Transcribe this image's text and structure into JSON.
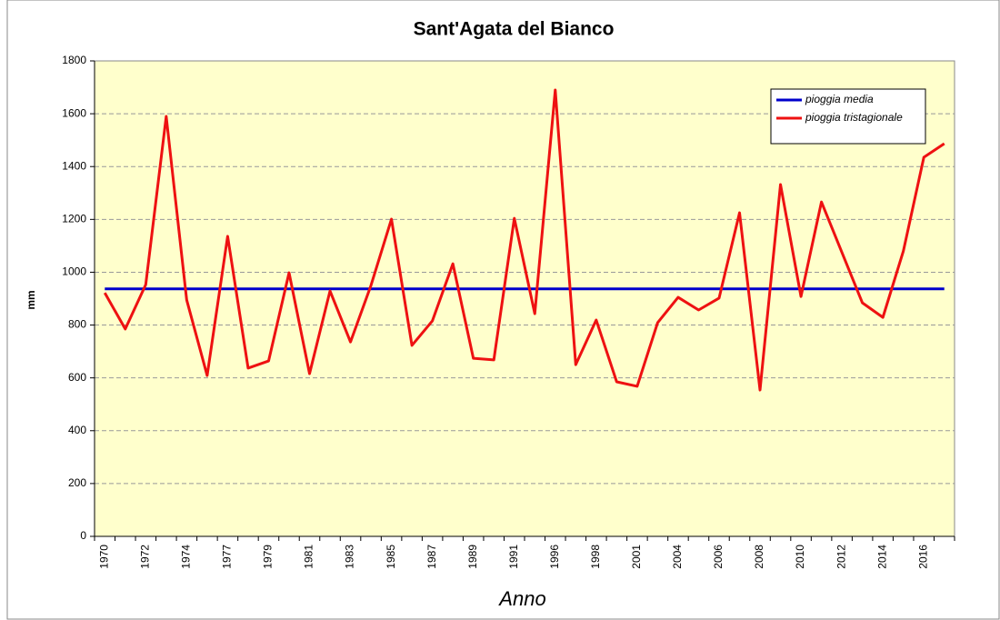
{
  "chart_data": {
    "type": "line",
    "title": "Sant'Agata del Bianco",
    "x_label": "Anno",
    "y_label": "mm",
    "categories": [
      "1970",
      null,
      "1972",
      null,
      "1974",
      null,
      "1977",
      null,
      "1979",
      null,
      "1981",
      null,
      "1983",
      null,
      "1985",
      null,
      "1987",
      null,
      "1989",
      null,
      "1991",
      null,
      "1996",
      null,
      "1998",
      null,
      "2001",
      null,
      "2004",
      null,
      "2006",
      null,
      "2008",
      null,
      "2010",
      null,
      "2012",
      null,
      "2014",
      null,
      "2016",
      null
    ],
    "series": [
      {
        "name": "pioggia media",
        "color": "#0000cc",
        "values": [
          937,
          937,
          937,
          937,
          937,
          937,
          937,
          937,
          937,
          937,
          937,
          937,
          937,
          937,
          937,
          937,
          937,
          937,
          937,
          937,
          937,
          937,
          937,
          937,
          937,
          937,
          937,
          937,
          937,
          937,
          937,
          937,
          937,
          937,
          937,
          937,
          937,
          937,
          937,
          937,
          937,
          937
        ]
      },
      {
        "name": "pioggia tristagionale",
        "color": "#ee1111",
        "values": [
          922,
          785,
          953,
          1590,
          895,
          609,
          1136,
          637,
          664,
          998,
          616,
          929,
          736,
          950,
          1201,
          723,
          816,
          1032,
          674,
          668,
          1204,
          843,
          1690,
          650,
          819,
          585,
          568,
          809,
          905,
          857,
          902,
          1225,
          554,
          1332,
          908,
          1266,
          1075,
          884,
          829,
          1080,
          1435,
          1487
        ]
      }
    ],
    "ylim": [
      0,
      1800
    ],
    "yticks": [
      0,
      200,
      400,
      600,
      800,
      1000,
      1200,
      1400,
      1600,
      1800
    ],
    "grid": true,
    "legend": "top-right",
    "plot_background": "#ffffcc"
  }
}
